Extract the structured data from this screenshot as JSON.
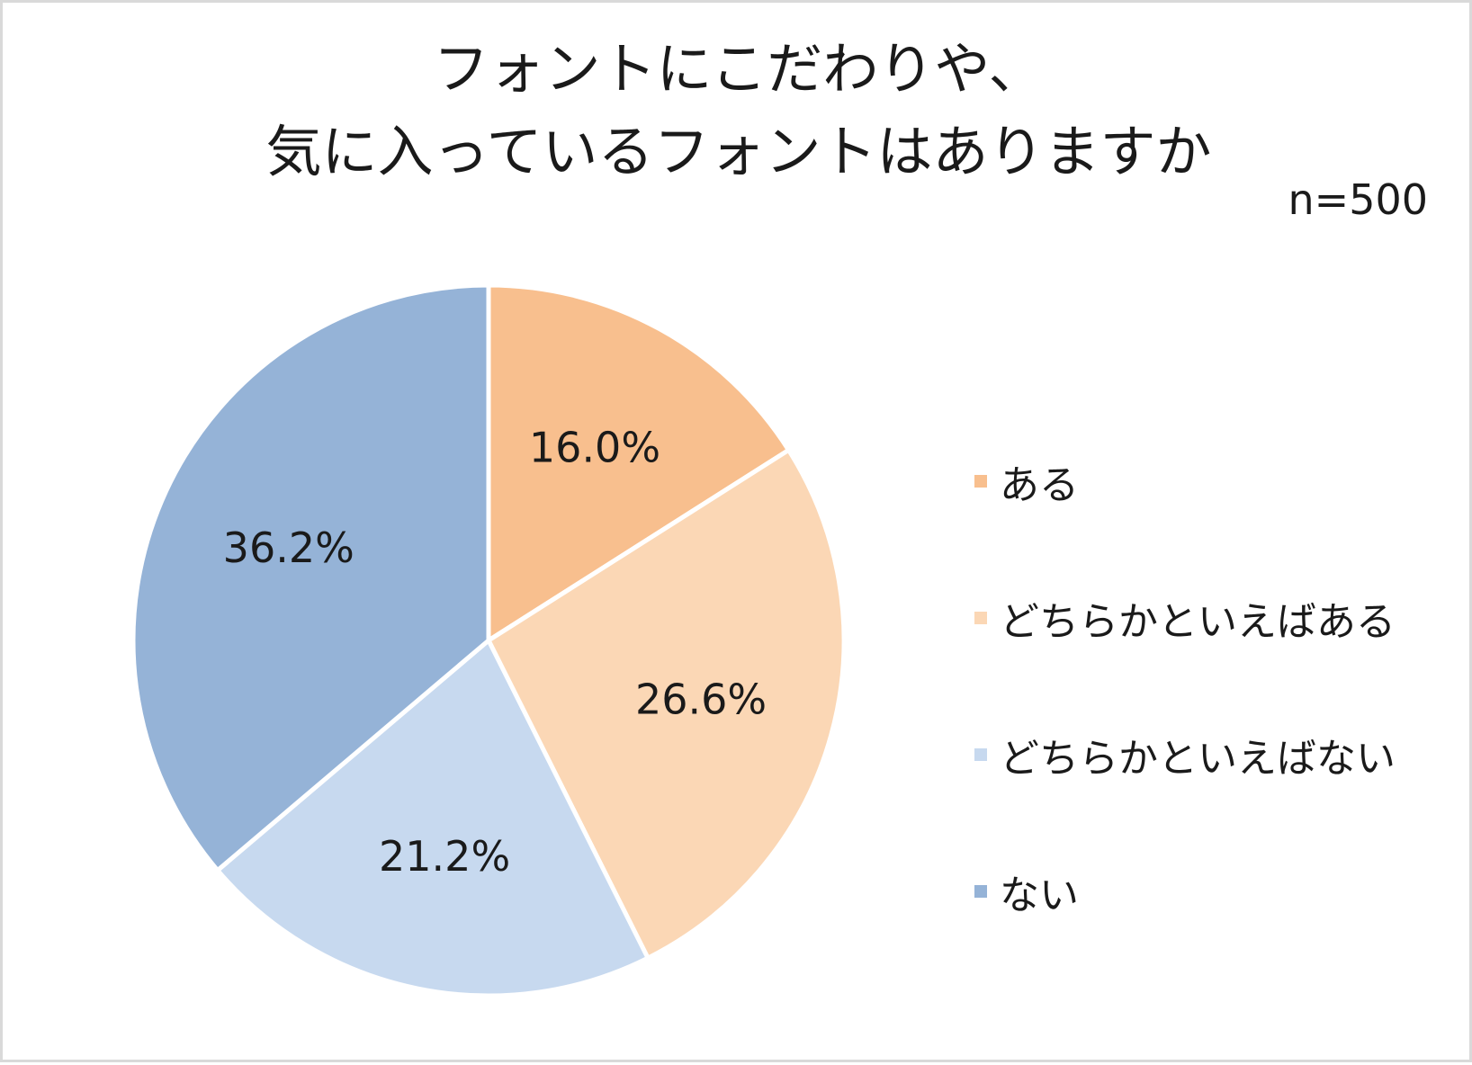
{
  "title_lines": [
    "フォントにこだわりや、",
    "気に入っているフォントはありますか"
  ],
  "sample_size_label": "n=500",
  "chart_data": {
    "type": "pie",
    "title": "フォントにこだわりや、気に入っているフォントはありますか",
    "categories": [
      "ある",
      "どちらかといえばある",
      "どちらかといえばない",
      "ない"
    ],
    "values": [
      16.0,
      26.6,
      21.2,
      36.2
    ],
    "value_labels": [
      "16.0%",
      "26.6%",
      "21.2%",
      "36.2%"
    ],
    "colors": [
      "#f8bf8e",
      "#fbd7b5",
      "#c7d9ef",
      "#95b3d7"
    ],
    "start_angle": "12 o'clock",
    "direction": "clockwise",
    "legend_position": "right"
  }
}
